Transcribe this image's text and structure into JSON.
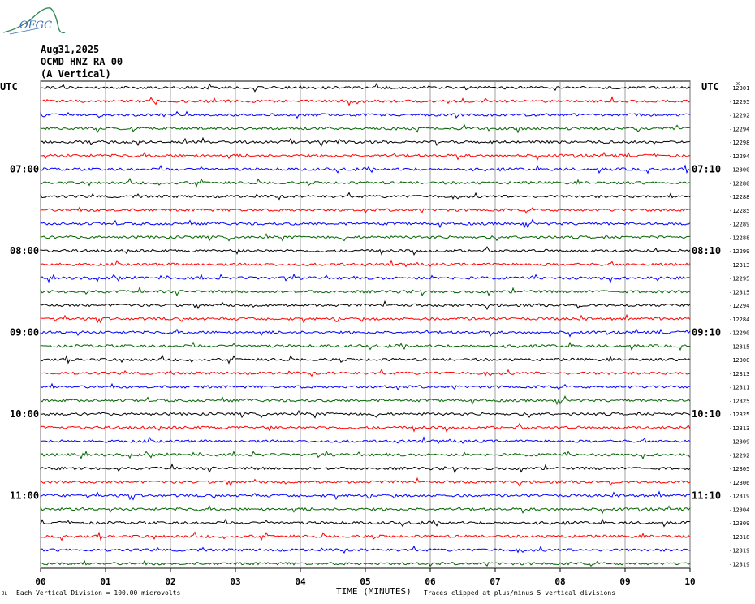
{
  "header": {
    "date": "Aug31,2025",
    "station": "OCMD HNZ RA 00",
    "component": "(A Vertical)",
    "logo_text": "OFGC"
  },
  "footer": {
    "division_note": "Each Vertical Division =  100.00 microvolts",
    "clip_note": "Traces clipped at plus/minus 5 vertical divisions",
    "corner_mark": "JL"
  },
  "colors": {
    "trace_cycle": [
      "#000000",
      "#ff0000",
      "#0000ff",
      "#006400"
    ],
    "grid": "#000000"
  },
  "chart_data": {
    "type": "line",
    "title": "",
    "xlabel": "TIME (MINUTES)",
    "ylabel": "",
    "xlim": [
      0,
      10
    ],
    "x_tick_labels": [
      "00",
      "01",
      "02",
      "03",
      "04",
      "05",
      "06",
      "07",
      "08",
      "09",
      "10"
    ],
    "left_axis_title": "UTC",
    "right_axis_title": "UTC",
    "left_time_labels": [
      {
        "trace": 6,
        "label": "07:00"
      },
      {
        "trace": 12,
        "label": "08:00"
      },
      {
        "trace": 18,
        "label": "09:00"
      },
      {
        "trace": 24,
        "label": "10:00"
      },
      {
        "trace": 30,
        "label": "11:00"
      }
    ],
    "right_time_labels": [
      {
        "trace": 6,
        "label": "07:10"
      },
      {
        "trace": 12,
        "label": "08:10"
      },
      {
        "trace": 18,
        "label": "09:10"
      },
      {
        "trace": 24,
        "label": "10:10"
      },
      {
        "trace": 30,
        "label": "11:10"
      }
    ],
    "trace_offsets": [
      "-12301",
      "-12295",
      "-12292",
      "-12294",
      "-12298",
      "-12294",
      "-12300",
      "-12280",
      "-12288",
      "-12285",
      "-12289",
      "-12288",
      "-12299",
      "-12313",
      "-12295",
      "-12315",
      "-12294",
      "-12284",
      "-12290",
      "-12315",
      "-12300",
      "-12313",
      "-12311",
      "-12325",
      "-12325",
      "-12313",
      "-12309",
      "-12292",
      "-12305",
      "-12306",
      "-12319",
      "-12304",
      "-12309",
      "-12318",
      "-12319",
      "-12319"
    ],
    "first_offset_prefix": "DC",
    "trace_count": 36,
    "grid": true
  }
}
